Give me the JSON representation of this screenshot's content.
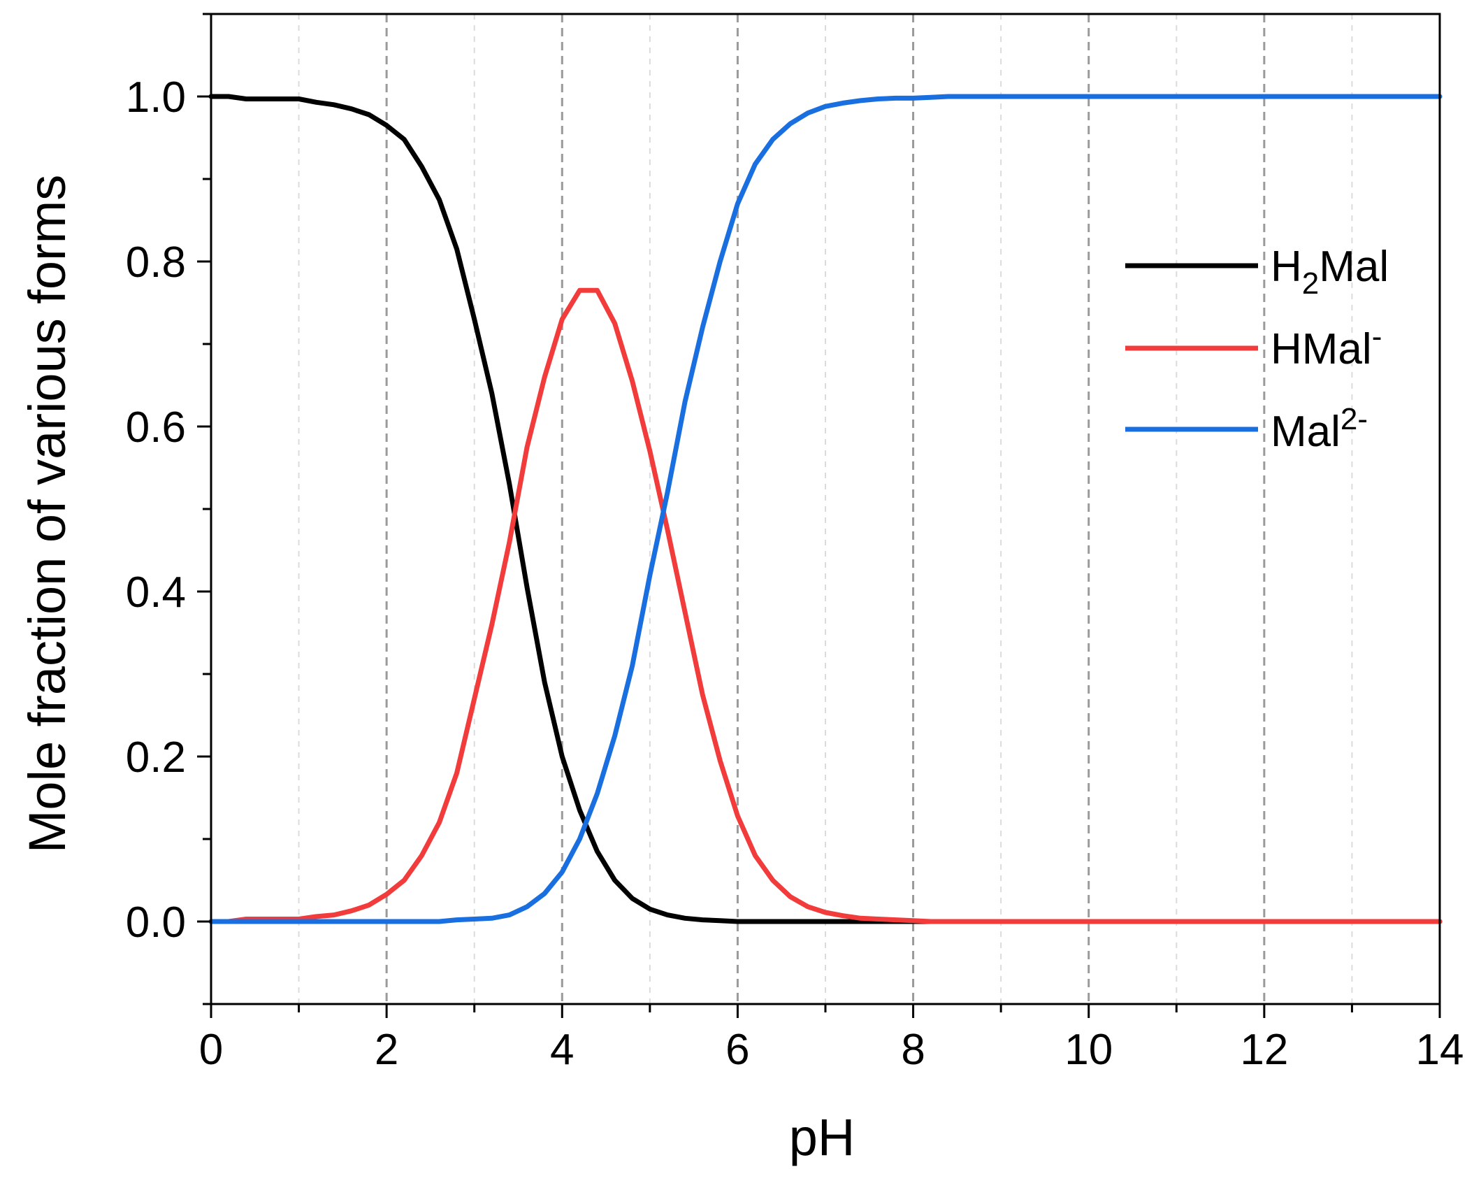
{
  "chart_data": {
    "type": "line",
    "title": "",
    "xlabel": "pH",
    "ylabel": "Mole fraction of various forms",
    "xlim": [
      0,
      14
    ],
    "ylim": [
      -0.1,
      1.1
    ],
    "xticks": [
      0,
      2,
      4,
      6,
      8,
      10,
      12,
      14
    ],
    "xtick_labels": [
      "0",
      "2",
      "4",
      "6",
      "8",
      "10",
      "12",
      "14"
    ],
    "yticks": [
      0.0,
      0.2,
      0.4,
      0.6,
      0.8,
      1.0
    ],
    "ytick_labels": [
      "0.0",
      "0.2",
      "0.4",
      "0.6",
      "0.8",
      "1.0"
    ],
    "grid": "vertical dashed lines at major and minor x ticks",
    "legend_position": "right",
    "x": [
      0,
      0.2,
      0.4,
      0.6,
      0.8,
      1.0,
      1.2,
      1.4,
      1.6,
      1.8,
      2.0,
      2.2,
      2.4,
      2.6,
      2.8,
      3.0,
      3.2,
      3.4,
      3.6,
      3.8,
      4.0,
      4.2,
      4.4,
      4.6,
      4.8,
      5.0,
      5.2,
      5.4,
      5.6,
      5.8,
      6.0,
      6.2,
      6.4,
      6.6,
      6.8,
      7.0,
      7.2,
      7.4,
      7.6,
      7.8,
      8.0,
      8.2,
      8.4,
      9,
      10,
      11,
      12,
      13,
      14
    ],
    "series": [
      {
        "name": "H2Mal",
        "legend_main": "H",
        "legend_sub": "2",
        "legend_rest": "Mal",
        "color": "#000000",
        "values": [
          1.0,
          1.0,
          0.997,
          0.997,
          0.997,
          0.997,
          0.993,
          0.99,
          0.985,
          0.978,
          0.965,
          0.948,
          0.915,
          0.875,
          0.815,
          0.73,
          0.64,
          0.53,
          0.405,
          0.29,
          0.2,
          0.135,
          0.085,
          0.05,
          0.028,
          0.015,
          0.008,
          0.004,
          0.002,
          0.001,
          0.0,
          0.0,
          0.0,
          0.0,
          0.0,
          0.0,
          0.0,
          0.0,
          0.0,
          0.0,
          0.0,
          0.0,
          0.0,
          0.0,
          0.0,
          0.0,
          0.0,
          0.0,
          0.0
        ]
      },
      {
        "name": "HMal-",
        "legend_main": "HMal",
        "legend_sup": "-",
        "color": "#f23b3b",
        "values": [
          0.0,
          0.0,
          0.003,
          0.003,
          0.003,
          0.003,
          0.006,
          0.008,
          0.013,
          0.02,
          0.033,
          0.05,
          0.08,
          0.12,
          0.18,
          0.27,
          0.36,
          0.46,
          0.575,
          0.66,
          0.73,
          0.765,
          0.765,
          0.725,
          0.655,
          0.57,
          0.475,
          0.375,
          0.275,
          0.195,
          0.128,
          0.08,
          0.05,
          0.03,
          0.018,
          0.011,
          0.007,
          0.004,
          0.003,
          0.002,
          0.001,
          0.0,
          0.0,
          0.0,
          0.0,
          0.0,
          0.0,
          0.0,
          0.0
        ]
      },
      {
        "name": "Mal2-",
        "legend_main": "Mal",
        "legend_sup": "2-",
        "color": "#1a6fe0",
        "values": [
          0.0,
          0.0,
          0.0,
          0.0,
          0.0,
          0.0,
          0.0,
          0.0,
          0.0,
          0.0,
          0.0,
          0.0,
          0.0,
          0.0,
          0.002,
          0.003,
          0.004,
          0.008,
          0.018,
          0.034,
          0.06,
          0.1,
          0.155,
          0.225,
          0.31,
          0.42,
          0.52,
          0.63,
          0.72,
          0.8,
          0.87,
          0.918,
          0.948,
          0.967,
          0.98,
          0.988,
          0.992,
          0.995,
          0.997,
          0.998,
          0.998,
          0.999,
          1.0,
          1.0,
          1.0,
          1.0,
          1.0,
          1.0,
          1.0
        ]
      }
    ]
  }
}
